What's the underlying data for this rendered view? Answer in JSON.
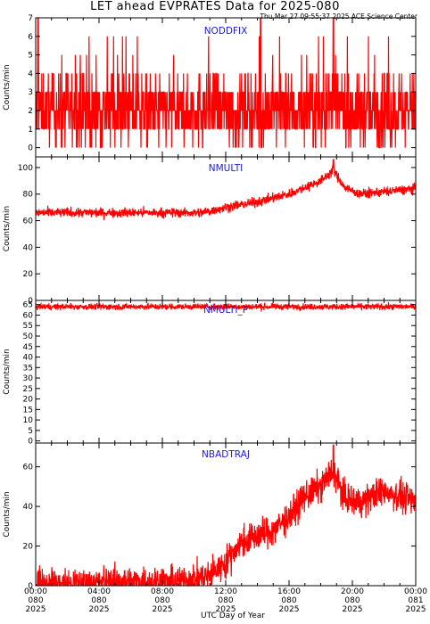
{
  "title": "LET ahead EVPRATES Data for 2025-080",
  "timestamp": "Thu Mar 27 09:55:37 2025 ACE Science Center",
  "x_axis_label": "UTC Day of Year",
  "colors": {
    "series": "#ff0000",
    "panel_name": "#1a1ae6",
    "axis": "#000000"
  },
  "chart_data": [
    {
      "type": "line",
      "series": [
        {
          "name": "NODDFIX"
        }
      ],
      "ylabel": "Counts/min",
      "ylim": [
        -0.5,
        7
      ],
      "yticks": [
        0,
        1,
        2,
        3,
        4,
        5,
        6,
        7
      ],
      "xlim": [
        0,
        24
      ],
      "x_units": "hours UTC on day 080",
      "profile": {
        "description_values": "discrete counts 0-7, mostly 0-3 throughout day",
        "segments": [
          [
            0,
            2
          ],
          [
            24,
            2
          ]
        ]
      },
      "noise": 1.3,
      "discrete": true,
      "spikes": [
        {
          "x": 0.15,
          "y": 7
        },
        {
          "x": 14.2,
          "y": 7
        },
        {
          "x": 18.8,
          "y": 7
        }
      ]
    },
    {
      "type": "line",
      "series": [
        {
          "name": "NMULTI"
        }
      ],
      "ylabel": "Counts/min",
      "ylim": [
        0,
        108
      ],
      "yticks": [
        0,
        20,
        40,
        60,
        80,
        100
      ],
      "xlim": [
        0,
        24
      ],
      "x_units": "hours UTC on day 080",
      "profile": {
        "segments": [
          [
            0,
            66
          ],
          [
            10.5,
            66
          ],
          [
            12,
            70
          ],
          [
            14,
            74
          ],
          [
            16,
            80
          ],
          [
            17,
            85
          ],
          [
            18,
            90
          ],
          [
            18.8,
            98
          ],
          [
            19.5,
            85
          ],
          [
            20.5,
            80
          ],
          [
            24,
            84
          ]
        ]
      },
      "noise": 2.5,
      "spikes": [
        {
          "x": 18.8,
          "y": 106
        }
      ]
    },
    {
      "type": "line",
      "series": [
        {
          "name": "NMULTI_P"
        }
      ],
      "ylabel": "Counts/min",
      "ylim": [
        -1,
        67
      ],
      "yticks": [
        0,
        5,
        10,
        15,
        20,
        25,
        30,
        35,
        40,
        45,
        50,
        55,
        60,
        65
      ],
      "xlim": [
        0,
        24
      ],
      "x_units": "hours UTC on day 080",
      "profile": {
        "segments": [
          [
            0,
            64
          ],
          [
            24,
            64
          ]
        ]
      },
      "noise": 1.0,
      "spikes": []
    },
    {
      "type": "line",
      "series": [
        {
          "name": "NBADTRAJ"
        }
      ],
      "ylabel": "Counts/min",
      "ylim": [
        0,
        72
      ],
      "yticks": [
        0,
        20,
        40,
        60
      ],
      "xlim": [
        0,
        24
      ],
      "x_units": "hours UTC on day 080",
      "profile": {
        "segments": [
          [
            0,
            1
          ],
          [
            9,
            2
          ],
          [
            11,
            5
          ],
          [
            12,
            12
          ],
          [
            13,
            22
          ],
          [
            14,
            25
          ],
          [
            15,
            28
          ],
          [
            16,
            35
          ],
          [
            17,
            45
          ],
          [
            18,
            50
          ],
          [
            18.8,
            58
          ],
          [
            19.5,
            44
          ],
          [
            20.5,
            42
          ],
          [
            22,
            48
          ],
          [
            23,
            45
          ],
          [
            24,
            42
          ]
        ]
      },
      "noise": 5.5,
      "spikes": [
        {
          "x": 18.8,
          "y": 71
        }
      ]
    }
  ],
  "x_ticks": [
    {
      "x": 0,
      "lines": [
        "00:00",
        "080",
        "2025"
      ]
    },
    {
      "x": 4,
      "lines": [
        "04:00",
        "080",
        "2025"
      ]
    },
    {
      "x": 8,
      "lines": [
        "08:00",
        "080",
        "2025"
      ]
    },
    {
      "x": 12,
      "lines": [
        "12:00",
        "080",
        "2025"
      ]
    },
    {
      "x": 16,
      "lines": [
        "16:00",
        "080",
        "2025"
      ]
    },
    {
      "x": 20,
      "lines": [
        "20:00",
        "080",
        "2025"
      ]
    },
    {
      "x": 24,
      "lines": [
        "00:00",
        "081",
        "2025"
      ]
    }
  ]
}
